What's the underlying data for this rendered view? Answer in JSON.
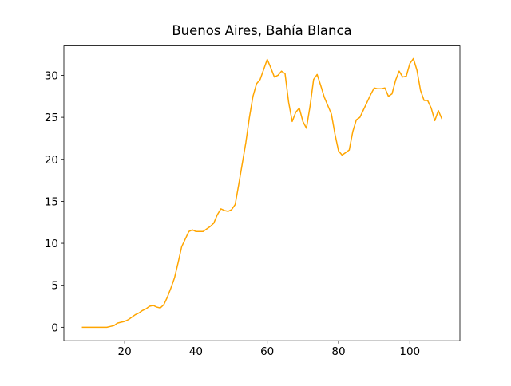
{
  "chart_data": {
    "type": "line",
    "title": "Buenos Aires, Bahía Blanca",
    "x": [
      8,
      9,
      10,
      11,
      12,
      13,
      14,
      15,
      16,
      17,
      18,
      19,
      20,
      21,
      22,
      23,
      24,
      25,
      26,
      27,
      28,
      29,
      30,
      31,
      32,
      33,
      34,
      35,
      36,
      37,
      38,
      39,
      40,
      41,
      42,
      43,
      44,
      45,
      46,
      47,
      48,
      49,
      50,
      51,
      52,
      53,
      54,
      55,
      56,
      57,
      58,
      59,
      60,
      61,
      62,
      63,
      64,
      65,
      66,
      67,
      68,
      69,
      70,
      71,
      72,
      73,
      74,
      75,
      76,
      77,
      78,
      79,
      80,
      81,
      82,
      83,
      84,
      85,
      86,
      87,
      88,
      89,
      90,
      91,
      92,
      93,
      94,
      95,
      96,
      97,
      98,
      99,
      100,
      101,
      102,
      103,
      104,
      105,
      106,
      107,
      108,
      109
    ],
    "series": [
      {
        "color": "#ffa500",
        "values": [
          0,
          0,
          0,
          0,
          0,
          0,
          0,
          0,
          0.1,
          0.2,
          0.5,
          0.6,
          0.7,
          0.9,
          1.2,
          1.5,
          1.7,
          2.0,
          2.2,
          2.5,
          2.6,
          2.4,
          2.3,
          2.7,
          3.6,
          4.7,
          5.9,
          7.7,
          9.6,
          10.5,
          11.4,
          11.6,
          11.4,
          11.4,
          11.4,
          11.7,
          12.0,
          12.4,
          13.4,
          14.1,
          13.9,
          13.8,
          14.0,
          14.6,
          17.0,
          19.5,
          22.0,
          25.0,
          27.5,
          29.0,
          29.5,
          30.7,
          31.9,
          30.9,
          29.8,
          30.0,
          30.5,
          30.2,
          26.8,
          24.5,
          25.6,
          26.1,
          24.5,
          23.7,
          26.3,
          29.5,
          30.1,
          28.8,
          27.4,
          26.4,
          25.4,
          23.0,
          21.0,
          20.5,
          20.8,
          21.1,
          23.3,
          24.7,
          25.0,
          25.9,
          26.8,
          27.7,
          28.5,
          28.4,
          28.4,
          28.5,
          27.5,
          27.8,
          29.4,
          30.5,
          29.8,
          29.9,
          31.4,
          32.0,
          30.6,
          28.2,
          27.0,
          27.0,
          26.1,
          24.6,
          25.8,
          24.8
        ]
      }
    ],
    "xlim": [
      2.95,
      114.05
    ],
    "ylim": [
      -1.6,
      33.5
    ],
    "xticks": [
      20,
      40,
      60,
      80,
      100
    ],
    "yticks": [
      0,
      5,
      10,
      15,
      20,
      25,
      30
    ]
  }
}
